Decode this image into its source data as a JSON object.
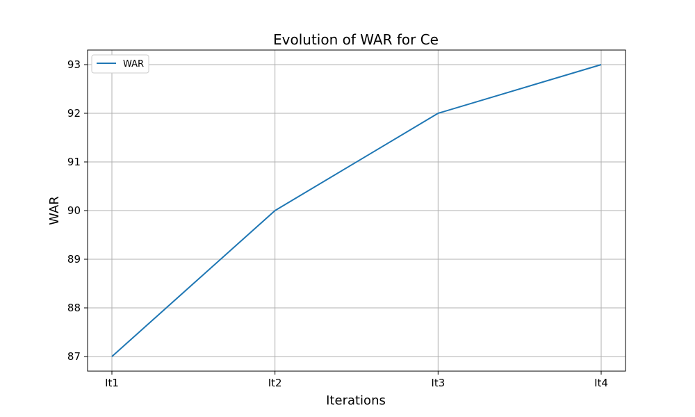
{
  "chart_data": {
    "type": "line",
    "title": "Evolution of WAR for Ce",
    "xlabel": "Iterations",
    "ylabel": "WAR",
    "categories": [
      "It1",
      "It2",
      "It3",
      "It4"
    ],
    "series": [
      {
        "name": "WAR",
        "values": [
          87,
          90,
          92,
          93
        ]
      }
    ],
    "ylim": [
      86.7,
      93.3
    ],
    "yticks": [
      87,
      88,
      89,
      90,
      91,
      92,
      93
    ],
    "grid": true,
    "legend_position": "top-left",
    "series_color": "#1f77b4"
  }
}
